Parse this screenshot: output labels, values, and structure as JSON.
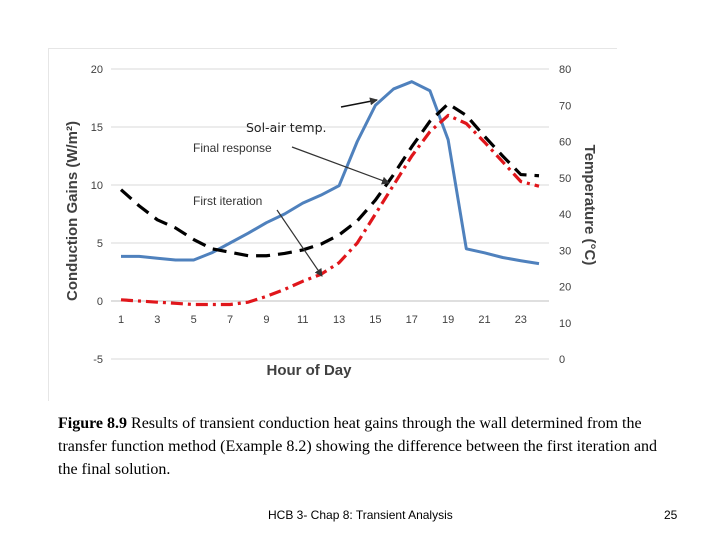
{
  "chart_data": {
    "type": "line",
    "xlabel": "Hour of Day",
    "ylabel_left": "Conduction Gains (W/m²)",
    "ylabel_right": "Temperature (°C)",
    "x_ticks": [
      "1",
      "3",
      "5",
      "7",
      "9",
      "11",
      "13",
      "15",
      "17",
      "19",
      "21",
      "23"
    ],
    "y_left_ticks": [
      "20",
      "15",
      "10",
      "5",
      "0",
      "-5"
    ],
    "y_right_ticks": [
      "80",
      "70",
      "60",
      "50",
      "40",
      "30",
      "20",
      "10",
      "0"
    ],
    "ylim_left": [
      -5,
      20
    ],
    "ylim_right": [
      0,
      80
    ],
    "x": [
      1,
      2,
      3,
      4,
      5,
      6,
      7,
      8,
      9,
      10,
      11,
      12,
      13,
      14,
      15,
      16,
      17,
      18,
      19,
      20,
      21,
      22,
      23,
      24
    ],
    "series": [
      {
        "axis": "right",
        "color": "#4f81bd",
        "style": "solid",
        "values": [
          28.3,
          28.3,
          27.8,
          27.3,
          27.3,
          29.3,
          32.0,
          34.7,
          37.6,
          40.0,
          43.0,
          45.2,
          47.8,
          60.0,
          70.0,
          74.5,
          76.5,
          74.0,
          60.5,
          30.4,
          29.3,
          28.0,
          27.1,
          26.3
        ]
      },
      {
        "axis": "left",
        "color": "#000000",
        "style": "dashed",
        "values": [
          9.6,
          8.2,
          7.0,
          6.3,
          5.3,
          4.5,
          4.2,
          3.9,
          3.9,
          4.1,
          4.4,
          4.9,
          5.7,
          6.9,
          8.7,
          10.9,
          13.3,
          15.5,
          17.0,
          16.0,
          14.2,
          12.5,
          10.9,
          10.8
        ]
      },
      {
        "axis": "left",
        "color": "#e0161b",
        "style": "dash-dot",
        "values": [
          0.1,
          0.0,
          -0.1,
          -0.2,
          -0.3,
          -0.3,
          -0.3,
          -0.1,
          0.4,
          1.0,
          1.7,
          2.3,
          3.3,
          5.0,
          7.5,
          10.0,
          12.5,
          14.6,
          16.0,
          15.3,
          13.7,
          12.0,
          10.3,
          9.9
        ]
      }
    ],
    "annotations": [
      "Sol-air temp.",
      "Final response",
      "First iteration"
    ]
  },
  "caption": {
    "label": "Figure 8.9",
    "text": " Results of transient conduction heat gains through the wall determined from the transfer function method (Example 8.2) showing the difference between the first iteration and the final solution."
  },
  "footer": "HCB 3- Chap 8: Transient Analysis",
  "page_number": "25"
}
